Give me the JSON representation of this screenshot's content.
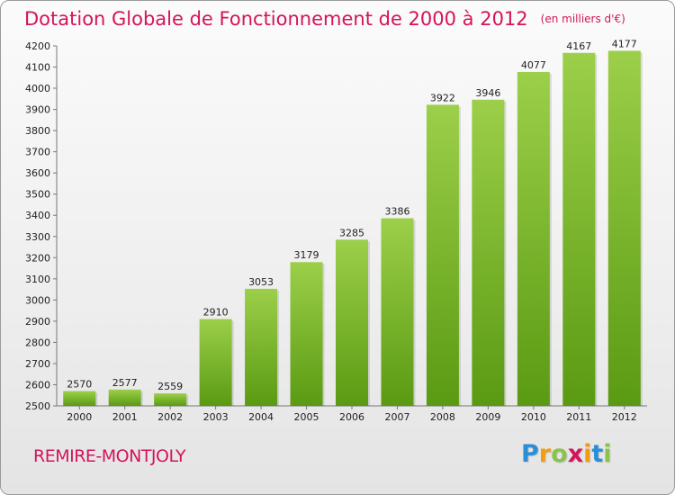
{
  "title": "Dotation Globale de Fonctionnement de 2000 à 2012",
  "unit": "(en milliers d'€)",
  "commune": "REMIRE-MONTJOLY",
  "logo": {
    "text": "Proxiti",
    "letters": [
      {
        "ch": "P",
        "color": "#2a8fd6"
      },
      {
        "ch": "r",
        "color": "#f39c12"
      },
      {
        "ch": "o",
        "color": "#8bc34a"
      },
      {
        "ch": "x",
        "color": "#d4145a"
      },
      {
        "ch": "i",
        "color": "#f39c12"
      },
      {
        "ch": "t",
        "color": "#2a8fd6"
      },
      {
        "ch": "i",
        "color": "#8bc34a"
      }
    ]
  },
  "colors": {
    "title": "#d4145a",
    "bar_light": "#9ccf4a",
    "bar_dark": "#5a9a12"
  },
  "chart_data": {
    "type": "bar",
    "title": "Dotation Globale de Fonctionnement de 2000 à 2012",
    "ylabel": "en milliers d'€",
    "xlabel": "",
    "categories": [
      "2000",
      "2001",
      "2002",
      "2003",
      "2004",
      "2005",
      "2006",
      "2007",
      "2008",
      "2009",
      "2010",
      "2011",
      "2012"
    ],
    "values": [
      2570,
      2577,
      2559,
      2910,
      3053,
      3179,
      3285,
      3386,
      3922,
      3946,
      4077,
      4167,
      4177
    ],
    "ylim": [
      2500,
      4200
    ],
    "ytick_step": 100,
    "grid": false
  }
}
